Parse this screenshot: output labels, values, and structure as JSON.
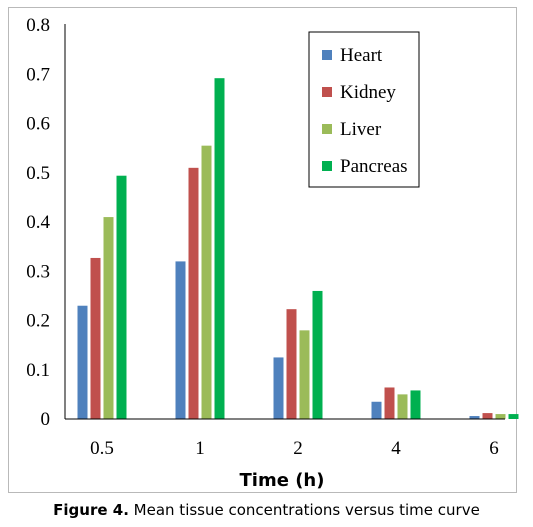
{
  "chart_data": {
    "type": "bar",
    "categories": [
      "0.5",
      "1",
      "2",
      "4",
      "6"
    ],
    "series": [
      {
        "name": "Heart",
        "color": "#4f81bd",
        "values": [
          0.23,
          0.32,
          0.125,
          0.035,
          0.006
        ]
      },
      {
        "name": "Kidney",
        "color": "#c0504d",
        "values": [
          0.327,
          0.51,
          0.223,
          0.064,
          0.012
        ]
      },
      {
        "name": "Liver",
        "color": "#9bbb59",
        "values": [
          0.41,
          0.555,
          0.18,
          0.05,
          0.01
        ]
      },
      {
        "name": "Pancreas",
        "color": "#00b050",
        "values": [
          0.494,
          0.692,
          0.26,
          0.058,
          0.01
        ]
      }
    ],
    "xlabel": "Time (h)",
    "ylabel": "",
    "ylim": [
      0,
      0.8
    ],
    "yticks": [
      "0",
      "0.1",
      "0.2",
      "0.3",
      "0.4",
      "0.5",
      "0.6",
      "0.7",
      "0.8"
    ],
    "grid": false,
    "legend_position": "top-right"
  },
  "caption": {
    "label": "Figure 4.",
    "text": "Mean tissue concentrations versus time curve"
  }
}
